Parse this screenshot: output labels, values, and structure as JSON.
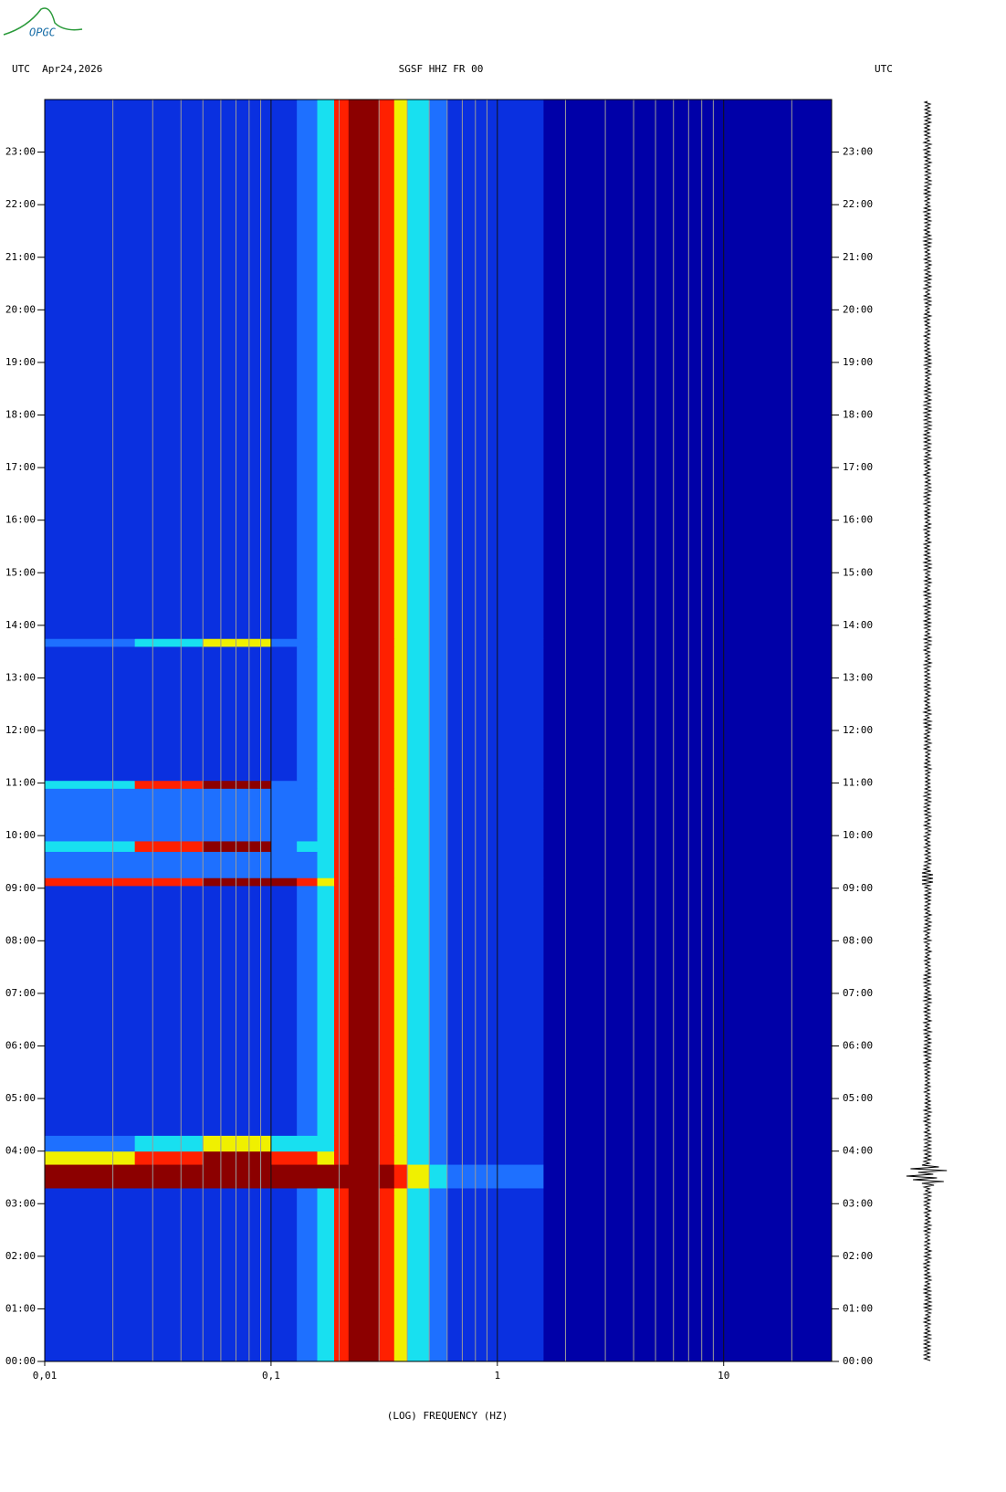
{
  "chart_data": {
    "type": "spectrogram",
    "header_left": "UTC  Apr24,2026",
    "title": "SGSF HHZ FR 00",
    "header_right": "UTC",
    "x_label": "(LOG) FREQUENCY (HZ)",
    "logo": "OPGC",
    "log_x": true,
    "xlim": [
      0.01,
      30
    ],
    "xticks": [
      {
        "value": 0.01,
        "label": "0,01"
      },
      {
        "value": 0.1,
        "label": "0,1"
      },
      1,
      10
    ],
    "xgrid": [
      0.02,
      0.03,
      0.04,
      0.05,
      0.06,
      0.07,
      0.08,
      0.09,
      0.2,
      0.3,
      0.4,
      0.5,
      0.6,
      0.7,
      0.8,
      0.9,
      2,
      3,
      4,
      5,
      6,
      7,
      8,
      9,
      20
    ],
    "ylim": [
      0,
      24
    ],
    "yticks": [
      {
        "value": 0,
        "label": "00:00"
      },
      {
        "value": 1,
        "label": "01:00"
      },
      {
        "value": 2,
        "label": "02:00"
      },
      {
        "value": 3,
        "label": "03:00"
      },
      {
        "value": 4,
        "label": "04:00"
      },
      {
        "value": 5,
        "label": "05:00"
      },
      {
        "value": 6,
        "label": "06:00"
      },
      {
        "value": 7,
        "label": "07:00"
      },
      {
        "value": 8,
        "label": "08:00"
      },
      {
        "value": 9,
        "label": "09:00"
      },
      {
        "value": 10,
        "label": "10:00"
      },
      {
        "value": 11,
        "label": "11:00"
      },
      {
        "value": 12,
        "label": "12:00"
      },
      {
        "value": 13,
        "label": "13:00"
      },
      {
        "value": 14,
        "label": "14:00"
      },
      {
        "value": 15,
        "label": "15:00"
      },
      {
        "value": 16,
        "label": "16:00"
      },
      {
        "value": 17,
        "label": "17:00"
      },
      {
        "value": 18,
        "label": "18:00"
      },
      {
        "value": 19,
        "label": "19:00"
      },
      {
        "value": 20,
        "label": "20:00"
      },
      {
        "value": 21,
        "label": "21:00"
      },
      {
        "value": 22,
        "label": "22:00"
      },
      {
        "value": 23,
        "label": "23:00"
      }
    ],
    "colormap": [
      "#0000a8",
      "#0a30e0",
      "#1e70ff",
      "#18e0f0",
      "#f0f000",
      "#ff2000",
      "#8c0000"
    ],
    "freq_bins": [
      0.01,
      0.025,
      0.05,
      0.1,
      0.13,
      0.16,
      0.19,
      0.22,
      0.3,
      0.35,
      0.4,
      0.5,
      0.6,
      1.6,
      30
    ],
    "time_bins": [
      0,
      3.3,
      3.75,
      4.0,
      4.3,
      9.05,
      9.2,
      9.7,
      9.9,
      10.9,
      11.05,
      13.6,
      13.75,
      24
    ],
    "values": [
      [
        1,
        1,
        1,
        1,
        2,
        3,
        5,
        6,
        5,
        4,
        3,
        2,
        1,
        0
      ],
      [
        6,
        6,
        6,
        6,
        6,
        6,
        6,
        6,
        6,
        5,
        4,
        3,
        2,
        0
      ],
      [
        4,
        5,
        6,
        5,
        5,
        4,
        5,
        6,
        5,
        4,
        3,
        2,
        1,
        0
      ],
      [
        2,
        3,
        4,
        3,
        3,
        3,
        5,
        6,
        5,
        4,
        3,
        2,
        1,
        0
      ],
      [
        1,
        1,
        1,
        1,
        2,
        3,
        5,
        6,
        5,
        4,
        3,
        2,
        1,
        0
      ],
      [
        5,
        5,
        6,
        6,
        5,
        4,
        5,
        6,
        5,
        4,
        3,
        2,
        1,
        0
      ],
      [
        2,
        2,
        2,
        2,
        2,
        3,
        5,
        6,
        5,
        4,
        3,
        2,
        1,
        0
      ],
      [
        3,
        5,
        6,
        2,
        3,
        3,
        5,
        6,
        5,
        4,
        3,
        2,
        1,
        0
      ],
      [
        2,
        2,
        2,
        2,
        2,
        3,
        5,
        6,
        5,
        4,
        3,
        2,
        1,
        0
      ],
      [
        3,
        5,
        6,
        2,
        2,
        3,
        5,
        6,
        5,
        4,
        3,
        2,
        1,
        0
      ],
      [
        1,
        1,
        1,
        1,
        2,
        3,
        5,
        6,
        5,
        4,
        3,
        2,
        1,
        0
      ],
      [
        2,
        3,
        4,
        2,
        2,
        3,
        5,
        6,
        5,
        4,
        3,
        2,
        1,
        0
      ],
      [
        1,
        1,
        1,
        1,
        2,
        3,
        5,
        6,
        5,
        4,
        3,
        2,
        1,
        0
      ]
    ]
  }
}
